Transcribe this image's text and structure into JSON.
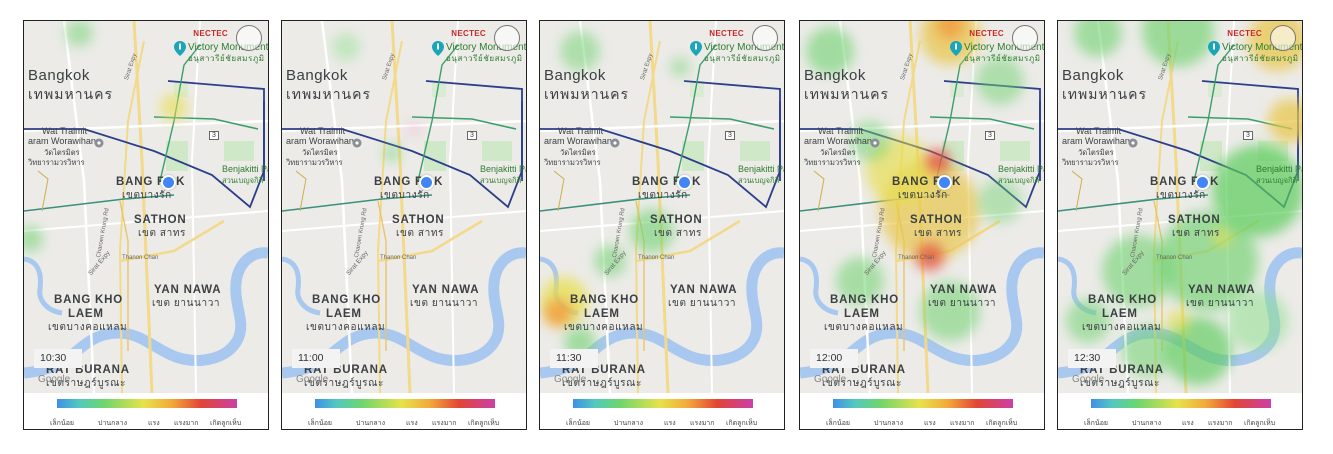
{
  "places": {
    "victory_monument_en": "Victory Monument",
    "victory_monument_th": "อนุสาวรีย์ชัยสมรภูมิ",
    "bangkok_en": "Bangkok",
    "bangkok_th": "เทพมหานคร",
    "wat_traimit_1": "Wat Traimit",
    "wat_traimit_2": "aram Worawihan",
    "wat_traimit_th1": "วัดไตรมิตร",
    "wat_traimit_th2": "วิทยารามวรวิหาร",
    "benjakitti_en": "Benjakitti Pa",
    "benjakitti_th": "สวนเบญจกิติ",
    "bang_rak_en": "BANG R",
    "bang_rak_en2": "K",
    "bang_rak_th": "เขตบางรัก",
    "sathon_en": "SATHON",
    "sathon_th": "เขต สาทร",
    "yan_nawa_en": "YAN NAWA",
    "yan_nawa_th": "เขต ยานนาวา",
    "bang_kho_laem_1": "BANG KHO",
    "bang_kho_laem_2": "LAEM",
    "bang_kho_laem_th": "เขตบางคอแหลม",
    "rat_burana_en": "RAT BURANA",
    "rat_burana_th": "เขตราษฎร์บูรณะ",
    "road_sirat": "Sirat Expy",
    "road_thanon_chan": "Thanon Chan",
    "road_charoen": "Charoen Krung Rd",
    "google": "Google",
    "highway_badge": "3"
  },
  "logo": {
    "nectec": "NECTEC"
  },
  "legend": {
    "labels": [
      "เล็กน้อย",
      "ปานกลาง",
      "แรง",
      "แรงมาก",
      "เกิดลูกเห็บ"
    ],
    "colors": [
      "#3f8fe8",
      "#6dd66d",
      "#e6e24a",
      "#e24535",
      "#cc3fa8"
    ]
  },
  "panels": [
    {
      "time": "10:30",
      "blobs": [
        {
          "x": 55,
          "y": 12,
          "r": 14,
          "color": "#6fd26f",
          "opacity": 0.5
        },
        {
          "x": 150,
          "y": 86,
          "r": 14,
          "color": "#e8df4d",
          "opacity": 0.6
        },
        {
          "x": 6,
          "y": 218,
          "r": 13,
          "color": "#6fd26f",
          "opacity": 0.55
        }
      ]
    },
    {
      "time": "11:00",
      "blobs": [
        {
          "x": 64,
          "y": 26,
          "r": 14,
          "color": "#8ee08e",
          "opacity": 0.45
        },
        {
          "x": 110,
          "y": 132,
          "r": 9,
          "color": "#6fd26f",
          "opacity": 0.5
        },
        {
          "x": 132,
          "y": 108,
          "r": 8,
          "color": "#f0b0d0",
          "opacity": 0.4
        }
      ]
    },
    {
      "time": "11:30",
      "blobs": [
        {
          "x": 40,
          "y": 30,
          "r": 20,
          "color": "#6fd26f",
          "opacity": 0.5
        },
        {
          "x": 140,
          "y": 46,
          "r": 10,
          "color": "#6fd26f",
          "opacity": 0.45
        },
        {
          "x": 112,
          "y": 210,
          "r": 22,
          "color": "#6fd26f",
          "opacity": 0.6
        },
        {
          "x": 70,
          "y": 240,
          "r": 16,
          "color": "#6fd26f",
          "opacity": 0.55
        },
        {
          "x": 24,
          "y": 280,
          "r": 24,
          "color": "#e8df4d",
          "opacity": 0.75
        },
        {
          "x": 18,
          "y": 292,
          "r": 14,
          "color": "#f2963a",
          "opacity": 0.75
        },
        {
          "x": 40,
          "y": 322,
          "r": 16,
          "color": "#6fd26f",
          "opacity": 0.6
        }
      ]
    },
    {
      "time": "12:00",
      "blobs": [
        {
          "x": 150,
          "y": 14,
          "r": 30,
          "color": "#e8c74d",
          "opacity": 0.75
        },
        {
          "x": 150,
          "y": 4,
          "r": 14,
          "color": "#f2963a",
          "opacity": 0.75
        },
        {
          "x": 30,
          "y": 30,
          "r": 24,
          "color": "#6fd26f",
          "opacity": 0.6
        },
        {
          "x": 200,
          "y": 60,
          "r": 24,
          "color": "#6fd26f",
          "opacity": 0.5
        },
        {
          "x": 130,
          "y": 190,
          "r": 50,
          "color": "#e8c74d",
          "opacity": 0.7
        },
        {
          "x": 100,
          "y": 150,
          "r": 34,
          "color": "#e8df4d",
          "opacity": 0.65
        },
        {
          "x": 138,
          "y": 140,
          "r": 12,
          "color": "#e24535",
          "opacity": 0.75
        },
        {
          "x": 130,
          "y": 236,
          "r": 14,
          "color": "#e24535",
          "opacity": 0.7
        },
        {
          "x": 70,
          "y": 120,
          "r": 20,
          "color": "#6fd26f",
          "opacity": 0.5
        },
        {
          "x": 60,
          "y": 260,
          "r": 24,
          "color": "#6fd26f",
          "opacity": 0.55
        },
        {
          "x": 150,
          "y": 290,
          "r": 30,
          "color": "#6fd26f",
          "opacity": 0.55
        },
        {
          "x": 200,
          "y": 180,
          "r": 22,
          "color": "#6fd26f",
          "opacity": 0.45
        }
      ]
    },
    {
      "time": "12:30",
      "blobs": [
        {
          "x": 120,
          "y": 10,
          "r": 36,
          "color": "#6fd26f",
          "opacity": 0.65
        },
        {
          "x": 40,
          "y": 12,
          "r": 24,
          "color": "#6fd26f",
          "opacity": 0.6
        },
        {
          "x": 220,
          "y": 20,
          "r": 30,
          "color": "#e8c74d",
          "opacity": 0.75
        },
        {
          "x": 232,
          "y": 100,
          "r": 22,
          "color": "#e8c74d",
          "opacity": 0.75
        },
        {
          "x": 200,
          "y": 170,
          "r": 46,
          "color": "#5ccc5c",
          "opacity": 0.7
        },
        {
          "x": 150,
          "y": 240,
          "r": 50,
          "color": "#6fd26f",
          "opacity": 0.65
        },
        {
          "x": 80,
          "y": 250,
          "r": 36,
          "color": "#6fd26f",
          "opacity": 0.6
        },
        {
          "x": 30,
          "y": 300,
          "r": 22,
          "color": "#6fd26f",
          "opacity": 0.55
        },
        {
          "x": 140,
          "y": 330,
          "r": 34,
          "color": "#5ccc5c",
          "opacity": 0.65
        },
        {
          "x": 200,
          "y": 300,
          "r": 30,
          "color": "#8ee08e",
          "opacity": 0.55
        },
        {
          "x": 90,
          "y": 330,
          "r": 26,
          "color": "#6fd26f",
          "opacity": 0.55
        },
        {
          "x": 164,
          "y": 216,
          "r": 10,
          "color": "#e8df4d",
          "opacity": 0.6
        },
        {
          "x": 120,
          "y": 300,
          "r": 12,
          "color": "#e8df4d",
          "opacity": 0.6
        }
      ]
    }
  ]
}
